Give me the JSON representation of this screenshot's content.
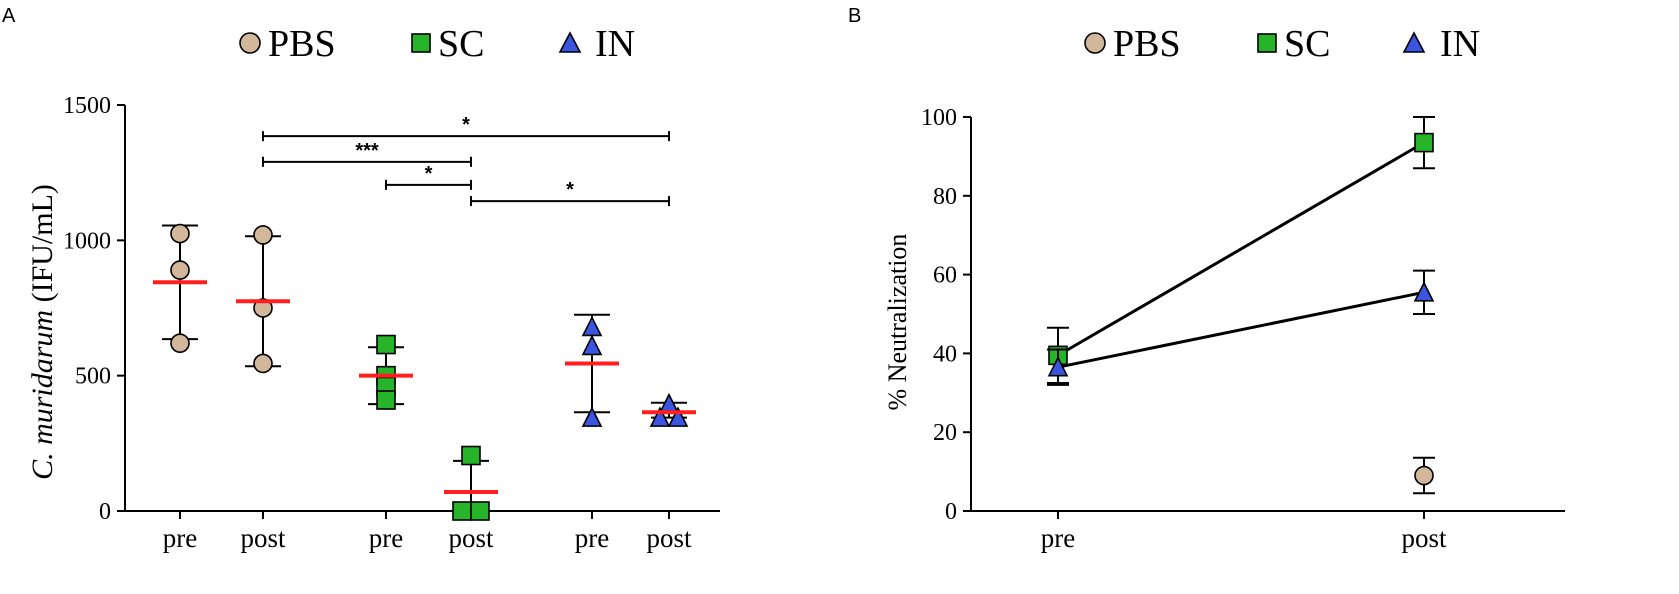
{
  "colors": {
    "pbs": "#d2b79a",
    "sc": "#27b32a",
    "in": "#3a55e0",
    "mean": "#ff1f1f",
    "axis": "#000000"
  },
  "panel_a": {
    "panel_label": "A",
    "legend": [
      {
        "label": "PBS",
        "marker": "circle",
        "color_key": "pbs"
      },
      {
        "label": "SC",
        "marker": "square",
        "color_key": "sc"
      },
      {
        "label": "IN",
        "marker": "triangle",
        "color_key": "in"
      }
    ],
    "ylabel_italic": "C. muridarum",
    "ylabel_rest": " (IFU/mL)"
  },
  "panel_b": {
    "panel_label": "B",
    "legend": [
      {
        "label": "PBS",
        "marker": "circle",
        "color_key": "pbs"
      },
      {
        "label": "SC",
        "marker": "square",
        "color_key": "sc"
      },
      {
        "label": "IN",
        "marker": "triangle",
        "color_key": "in"
      }
    ]
  },
  "chart_data": [
    {
      "type": "scatter",
      "title": "",
      "xlabel": "",
      "ylabel": "C. muridarum (IFU/mL)",
      "ylim": [
        0,
        1500
      ],
      "yticks": [
        0,
        500,
        1000,
        1500
      ],
      "categories": [
        "pre",
        "post",
        "pre",
        "post",
        "pre",
        "post"
      ],
      "groups": [
        {
          "series": "PBS",
          "category": "pre",
          "points": [
            1025,
            890,
            620
          ],
          "mean": 845,
          "error": [
            635,
            1055
          ]
        },
        {
          "series": "PBS",
          "category": "post",
          "points": [
            1020,
            750,
            545
          ],
          "mean": 775,
          "error": [
            535,
            1015
          ]
        },
        {
          "series": "SC",
          "category": "pre",
          "points": [
            615,
            500,
            460,
            410
          ],
          "mean": 500,
          "error": [
            395,
            605
          ]
        },
        {
          "series": "SC",
          "category": "post",
          "points": [
            205,
            0,
            0
          ],
          "mean": 70,
          "error": [
            0,
            185
          ]
        },
        {
          "series": "IN",
          "category": "pre",
          "points": [
            680,
            610,
            345
          ],
          "mean": 545,
          "error": [
            365,
            725
          ]
        },
        {
          "series": "IN",
          "category": "post",
          "points": [
            395,
            345,
            345
          ],
          "mean": 365,
          "error": [
            345,
            400
          ]
        }
      ],
      "significance": [
        {
          "from": 1,
          "to": 5,
          "value": 1385,
          "label": "*"
        },
        {
          "from": 1,
          "to": 3,
          "value": 1290,
          "label": "***"
        },
        {
          "from": 2,
          "to": 3,
          "value": 1205,
          "label": "*"
        },
        {
          "from": 3,
          "to": 5,
          "value": 1145,
          "label": "*"
        }
      ]
    },
    {
      "type": "line",
      "title": "",
      "xlabel": "",
      "ylabel": "% Neutralization",
      "ylim": [
        0,
        100
      ],
      "yticks": [
        0,
        20,
        40,
        60,
        80,
        100
      ],
      "categories": [
        "pre",
        "post"
      ],
      "series": [
        {
          "name": "PBS",
          "values": [
            null,
            9
          ],
          "errors": [
            null,
            4.5
          ],
          "connected": false
        },
        {
          "name": "SC",
          "values": [
            39.5,
            93.5
          ],
          "errors": [
            7,
            6.5
          ],
          "connected": true
        },
        {
          "name": "IN",
          "values": [
            36.5,
            55.5
          ],
          "errors": [
            4.5,
            5.5
          ],
          "connected": true
        }
      ]
    }
  ]
}
